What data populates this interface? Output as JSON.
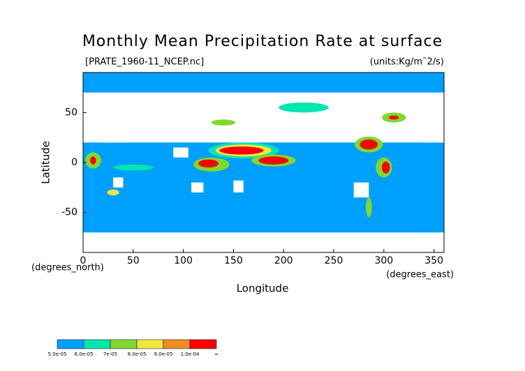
{
  "chart_data": {
    "type": "map",
    "title": "Monthly Mean Precipitation Rate at surface",
    "subtitle": "[PRATE_1960-11_NCEP.nc]",
    "units": "(units:Kg/m¯2/s)",
    "y_label": "Latitude",
    "x_label": "Longitude",
    "y_unit": "(degrees_north)",
    "x_unit": "(degrees_east)",
    "xlim": [
      0,
      360
    ],
    "ylim": [
      -90,
      90
    ],
    "xticks": [
      0,
      50,
      100,
      150,
      200,
      250,
      300,
      350
    ],
    "yticks": [
      -50,
      0,
      50
    ],
    "background": "#00a0ff",
    "colorbar": {
      "labels": [
        "5.0e-05",
        "6.0e-05",
        "7e-05",
        "8.0e-05",
        "9.0e-05",
        "1.0e-04",
        "∞"
      ],
      "colors": [
        "#00a0ff",
        "#00e6b0",
        "#80d830",
        "#f0e640",
        "#f08c28",
        "#fa0000"
      ]
    }
  }
}
